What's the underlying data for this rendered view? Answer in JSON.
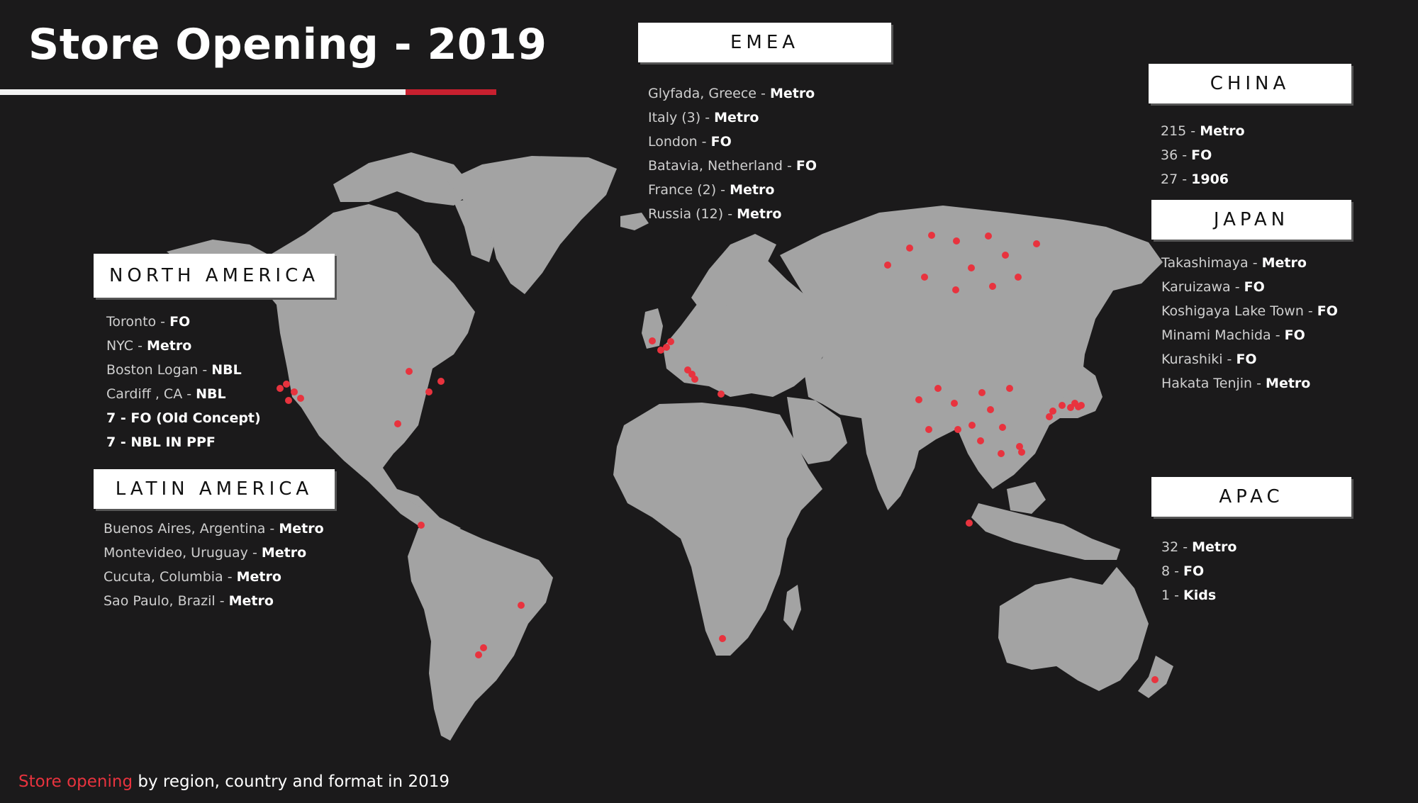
{
  "title": "Store Opening - 2019",
  "footer": {
    "highlight": "Store opening",
    "rest": " by region, country and format in 2019"
  },
  "colors": {
    "background": "#1b1a1b",
    "land": "#a3a3a3",
    "marker": "#e8333e",
    "accent": "#c8202f"
  },
  "regions": {
    "emea": {
      "label": "EMEA",
      "items": [
        {
          "place": "Glyfada, Greece - ",
          "format": "Metro"
        },
        {
          "place": "Italy (3) - ",
          "format": "Metro"
        },
        {
          "place": "London - ",
          "format": "FO"
        },
        {
          "place": "Batavia, Netherland - ",
          "format": "FO"
        },
        {
          "place": "France (2) - ",
          "format": "Metro"
        },
        {
          "place": "Russia  (12) - ",
          "format": "Metro"
        }
      ]
    },
    "china": {
      "label": "CHINA",
      "items": [
        {
          "place": "215 - ",
          "format": "Metro"
        },
        {
          "place": "36 - ",
          "format": "FO"
        },
        {
          "place": "27 - ",
          "format": "1906"
        }
      ]
    },
    "japan": {
      "label": "JAPAN",
      "items": [
        {
          "place": "Takashimaya -  ",
          "format": "Metro"
        },
        {
          "place": "Karuizawa - ",
          "format": "FO"
        },
        {
          "place": "Koshigaya Lake Town - ",
          "format": "FO"
        },
        {
          "place": "Minami Machida - ",
          "format": "FO"
        },
        {
          "place": "Kurashiki - ",
          "format": "FO"
        },
        {
          "place": "Hakata Tenjin - ",
          "format": "Metro"
        }
      ]
    },
    "north_america": {
      "label": "NORTH AMERICA",
      "items": [
        {
          "place": "Toronto - ",
          "format": "FO"
        },
        {
          "place": "NYC - ",
          "format": "Metro"
        },
        {
          "place": "Boston Logan - ",
          "format": "NBL"
        },
        {
          "place": "Cardiff , CA  -  ",
          "format": "NBL"
        },
        {
          "place": "7 - ",
          "format": "FO (Old Concept)"
        },
        {
          "place": "7 - ",
          "format": "NBL IN PPF"
        }
      ]
    },
    "latin_america": {
      "label": "LATIN AMERICA",
      "items": [
        {
          "place": "Buenos Aires, Argentina - ",
          "format": "Metro"
        },
        {
          "place": "Montevideo, Uruguay - ",
          "format": "Metro"
        },
        {
          "place": "Cucuta, Columbia -  ",
          "format": "Metro"
        },
        {
          "place": "Sao Paulo, Brazil - ",
          "format": "Metro"
        }
      ]
    },
    "apac": {
      "label": "APAC",
      "items": [
        {
          "place": "32 - ",
          "format": "Metro"
        },
        {
          "place": "8 - ",
          "format": "FO"
        },
        {
          "place": "1 - ",
          "format": "Kids"
        }
      ]
    }
  }
}
